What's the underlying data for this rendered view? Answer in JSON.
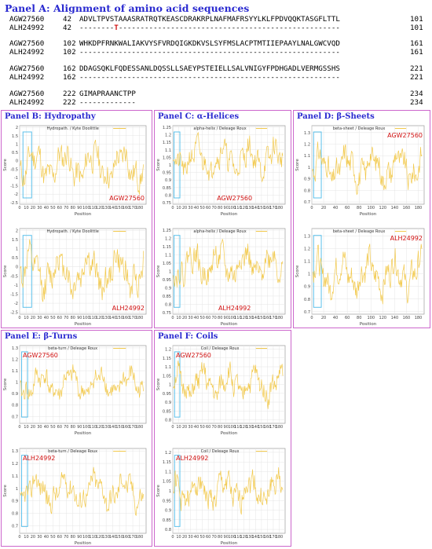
{
  "panelA": {
    "title": "Panel A: Alignment of amino acid sequences",
    "rows": [
      {
        "name": "AGW27560",
        "start": "42",
        "seq": "ADVLTPVSTAAASRATRQTKEASCDRAKRPLNAFMAFRSYYLKLFPDVQQKTASGFLTTL",
        "end": "101"
      },
      {
        "name": "ALH24992",
        "start": "42",
        "seq_a": "--------",
        "mut": "T",
        "seq_b": "---------------------------------------------------",
        "end": "101"
      },
      {
        "name": "AGW27560",
        "start": "102",
        "seq": "WHKDPFRNKWALIAKVYSFVRDQIGKDKVSLSYFMSLACPTMTIIEPAAYLNALGWCVQD",
        "end": "161"
      },
      {
        "name": "ALH24992",
        "start": "102",
        "seq": "------------------------------------------------------------",
        "end": "161"
      },
      {
        "name": "AGW27560",
        "start": "162",
        "seq": "DDAGSQKLFQDESSANLDQSSLLSAEYPSTEIELLSALVNIGYFPDHGADLVERMGSSHS",
        "end": "221"
      },
      {
        "name": "ALH24992",
        "start": "162",
        "seq": "------------------------------------------------------------",
        "end": "221"
      },
      {
        "name": "AGW27560",
        "start": "222",
        "seq": "GIMAPRAANCTPP",
        "end": "234"
      },
      {
        "name": "ALH24992",
        "start": "222",
        "seq": "-------------",
        "end": "234"
      }
    ]
  },
  "panels": {
    "B": {
      "title": "Panel B: Hydropathy"
    },
    "C": {
      "title": "Panel C: α-Helices"
    },
    "D": {
      "title": "Panel D: β-Sheets"
    },
    "E": {
      "title": "Panel E: β-Turns"
    },
    "F": {
      "title": "Panel F: Coils"
    }
  },
  "plot_text": {
    "xlabel": "Position",
    "ylabel": "Score"
  },
  "line_color": "#f2c94c",
  "highlight_color": "#5bc0eb",
  "label_color": "#d01010",
  "chart_data": [
    {
      "id": "B1",
      "type": "line",
      "title": "Hydropath. / Kyte  Doolittle",
      "seq_label": "AGW27560",
      "ylim": [
        -2.6,
        2.1
      ],
      "yticks": [
        -2.5,
        -2,
        -1.5,
        -1,
        -0.5,
        0,
        0.5,
        1,
        1.5,
        2
      ],
      "xlim": [
        0,
        190
      ],
      "xticks": [
        0,
        10,
        20,
        30,
        40,
        50,
        60,
        70,
        80,
        90,
        100,
        110,
        120,
        130,
        140,
        150,
        160,
        170,
        180
      ],
      "highlight_x": [
        5,
        18
      ],
      "seed": 11,
      "mean": -0.3,
      "amp": 1.3
    },
    {
      "id": "B2",
      "type": "line",
      "title": "Hydropath. / Kyte  Doolittle",
      "seq_label": "ALH24992",
      "ylim": [
        -2.6,
        2.1
      ],
      "yticks": [
        -2.5,
        -2,
        -1.5,
        -1,
        -0.5,
        0,
        0.5,
        1,
        1.5,
        2
      ],
      "xlim": [
        0,
        190
      ],
      "xticks": [
        0,
        10,
        20,
        30,
        40,
        50,
        60,
        70,
        80,
        90,
        100,
        110,
        120,
        130,
        140,
        150,
        160,
        170,
        180
      ],
      "highlight_x": [
        5,
        18
      ],
      "seed": 12,
      "mean": -0.3,
      "amp": 1.3
    },
    {
      "id": "C1",
      "type": "line",
      "title": "alpha-helix / Deleage  Roux",
      "seq_label": "AGW27560",
      "ylim": [
        0.74,
        1.26
      ],
      "yticks": [
        0.75,
        0.8,
        0.85,
        0.9,
        0.95,
        1,
        1.05,
        1.1,
        1.15,
        1.2,
        1.25
      ],
      "xlim": [
        0,
        190
      ],
      "xticks": [
        0,
        10,
        20,
        30,
        40,
        50,
        60,
        70,
        80,
        90,
        100,
        110,
        120,
        130,
        140,
        150,
        160,
        170,
        180
      ],
      "highlight_x": [
        2,
        12
      ],
      "seed": 21,
      "mean": 1.04,
      "amp": 0.12
    },
    {
      "id": "C2",
      "type": "line",
      "title": "alpha-helix / Deleage  Roux",
      "seq_label": "ALH24992",
      "ylim": [
        0.74,
        1.26
      ],
      "yticks": [
        0.75,
        0.8,
        0.85,
        0.9,
        0.95,
        1,
        1.05,
        1.1,
        1.15,
        1.2,
        1.25
      ],
      "xlim": [
        0,
        190
      ],
      "xticks": [
        0,
        10,
        20,
        30,
        40,
        50,
        60,
        70,
        80,
        90,
        100,
        110,
        120,
        130,
        140,
        150,
        160,
        170,
        180
      ],
      "highlight_x": [
        2,
        12
      ],
      "seed": 22,
      "mean": 1.04,
      "amp": 0.12
    },
    {
      "id": "D1",
      "type": "line",
      "title": "beta-sheet / Deleage  Roux",
      "seq_label": "AGW27560",
      "ylim": [
        0.68,
        1.36
      ],
      "yticks": [
        0.7,
        0.8,
        0.9,
        1,
        1.1,
        1.2,
        1.3
      ],
      "xlim": [
        0,
        190
      ],
      "xticks": [
        0,
        20,
        40,
        60,
        80,
        100,
        120,
        140,
        160,
        180
      ],
      "highlight_x": [
        3,
        16
      ],
      "seed": 31,
      "mean": 1.0,
      "amp": 0.17
    },
    {
      "id": "D2",
      "type": "line",
      "title": "beta-sheet / Deleage  Roux",
      "seq_label": "ALH24992",
      "ylim": [
        0.68,
        1.36
      ],
      "yticks": [
        0.7,
        0.8,
        0.9,
        1,
        1.1,
        1.2,
        1.3
      ],
      "xlim": [
        0,
        190
      ],
      "xticks": [
        0,
        20,
        40,
        60,
        80,
        100,
        120,
        140,
        160,
        180
      ],
      "highlight_x": [
        3,
        16
      ],
      "seed": 32,
      "mean": 1.0,
      "amp": 0.17
    },
    {
      "id": "E1",
      "type": "line",
      "title": "beta-turn / Deleage  Roux",
      "seq_label": "AGW27560",
      "ylim": [
        0.64,
        1.32
      ],
      "yticks": [
        0.7,
        0.8,
        0.9,
        1,
        1.1,
        1.2,
        1.3
      ],
      "xlim": [
        0,
        190
      ],
      "xticks": [
        0,
        10,
        20,
        30,
        40,
        50,
        60,
        70,
        80,
        90,
        100,
        110,
        120,
        130,
        140,
        150,
        160,
        170,
        180
      ],
      "highlight_x": [
        3,
        12
      ],
      "seed": 41,
      "mean": 0.98,
      "amp": 0.15
    },
    {
      "id": "E2",
      "type": "line",
      "title": "beta-turn / Deleage  Roux",
      "seq_label": "ALH24992",
      "ylim": [
        0.64,
        1.32
      ],
      "yticks": [
        0.7,
        0.8,
        0.9,
        1,
        1.1,
        1.2,
        1.3
      ],
      "xlim": [
        0,
        190
      ],
      "xticks": [
        0,
        10,
        20,
        30,
        40,
        50,
        60,
        70,
        80,
        90,
        100,
        110,
        120,
        130,
        140,
        150,
        160,
        170,
        180
      ],
      "highlight_x": [
        3,
        12
      ],
      "seed": 42,
      "mean": 0.98,
      "amp": 0.15
    },
    {
      "id": "F1",
      "type": "line",
      "title": "Coil / Deleage  Roux",
      "seq_label": "AGW27560",
      "ylim": [
        0.78,
        1.22
      ],
      "yticks": [
        0.8,
        0.85,
        0.9,
        0.95,
        1,
        1.05,
        1.1,
        1.15,
        1.2
      ],
      "xlim": [
        0,
        190
      ],
      "xticks": [
        0,
        10,
        20,
        30,
        40,
        50,
        60,
        70,
        80,
        90,
        100,
        110,
        120,
        130,
        140,
        150,
        160,
        170,
        180
      ],
      "highlight_x": [
        3,
        12
      ],
      "seed": 51,
      "mean": 1.0,
      "amp": 0.1
    },
    {
      "id": "F2",
      "type": "line",
      "title": "Coil / Deleage  Roux",
      "seq_label": "ALH24992",
      "ylim": [
        0.78,
        1.22
      ],
      "yticks": [
        0.8,
        0.85,
        0.9,
        0.95,
        1,
        1.05,
        1.1,
        1.15,
        1.2
      ],
      "xlim": [
        0,
        190
      ],
      "xticks": [
        0,
        10,
        20,
        30,
        40,
        50,
        60,
        70,
        80,
        90,
        100,
        110,
        120,
        130,
        140,
        150,
        160,
        170,
        180
      ],
      "highlight_x": [
        3,
        12
      ],
      "seed": 52,
      "mean": 1.0,
      "amp": 0.1
    }
  ]
}
